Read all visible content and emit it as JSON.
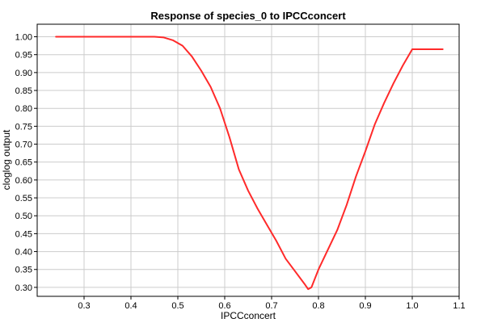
{
  "chart_data": {
    "type": "line",
    "title": "Response of species_0 to IPCCconcert",
    "xlabel": "IPCCconcert",
    "ylabel": "cloglog output",
    "xlim": [
      0.2,
      1.1
    ],
    "ylim": [
      0.275,
      1.035
    ],
    "x_ticks": [
      0.3,
      0.4,
      0.5,
      0.6,
      0.7,
      0.8,
      0.9,
      1.0,
      1.1
    ],
    "x_tick_labels": [
      "0.3",
      "0.4",
      "0.5",
      "0.6",
      "0.7",
      "0.8",
      "0.9",
      "1.0",
      "1.1"
    ],
    "y_ticks": [
      0.3,
      0.35,
      0.4,
      0.45,
      0.5,
      0.55,
      0.6,
      0.65,
      0.7,
      0.75,
      0.8,
      0.85,
      0.9,
      0.95,
      1.0
    ],
    "y_tick_labels": [
      "0.30",
      "0.35",
      "0.40",
      "0.45",
      "0.50",
      "0.55",
      "0.60",
      "0.65",
      "0.70",
      "0.75",
      "0.80",
      "0.85",
      "0.90",
      "0.95",
      "1.00"
    ],
    "grid": true,
    "series": [
      {
        "color": "#ff2a2a",
        "x": [
          0.24,
          0.3,
          0.35,
          0.4,
          0.45,
          0.47,
          0.49,
          0.51,
          0.53,
          0.55,
          0.57,
          0.59,
          0.61,
          0.63,
          0.65,
          0.67,
          0.69,
          0.71,
          0.73,
          0.75,
          0.77,
          0.778,
          0.785,
          0.8,
          0.82,
          0.84,
          0.86,
          0.88,
          0.9,
          0.92,
          0.94,
          0.96,
          0.98,
          1.0,
          1.065
        ],
        "y": [
          1.0,
          1.0,
          1.0,
          1.0,
          1.0,
          0.998,
          0.99,
          0.975,
          0.945,
          0.905,
          0.86,
          0.8,
          0.72,
          0.63,
          0.57,
          0.52,
          0.475,
          0.43,
          0.38,
          0.345,
          0.31,
          0.295,
          0.3,
          0.35,
          0.405,
          0.46,
          0.53,
          0.61,
          0.68,
          0.755,
          0.815,
          0.87,
          0.92,
          0.965,
          0.965
        ]
      }
    ]
  }
}
